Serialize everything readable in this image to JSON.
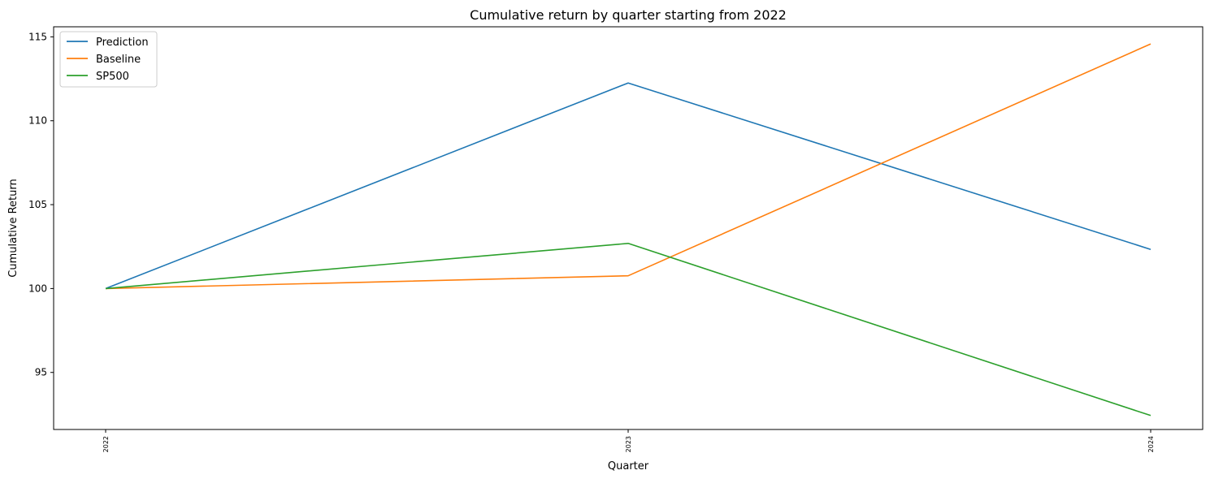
{
  "chart_data": {
    "type": "line",
    "title": "Cumulative return by quarter starting from 2022",
    "xlabel": "Quarter",
    "ylabel": "Cumulative Return",
    "categories": [
      "2022",
      "2023",
      "2024"
    ],
    "ylim": [
      91.6,
      115.6
    ],
    "yticks": [
      95,
      100,
      105,
      110,
      115
    ],
    "grid": false,
    "legend_position": "upper-left",
    "series": [
      {
        "name": "Prediction",
        "color": "#1f77b4",
        "values": [
          100.0,
          112.25,
          102.33
        ]
      },
      {
        "name": "Baseline",
        "color": "#ff7f0e",
        "values": [
          100.0,
          100.76,
          114.58
        ]
      },
      {
        "name": "SP500",
        "color": "#2ca02c",
        "values": [
          100.0,
          102.69,
          92.43
        ]
      }
    ]
  }
}
